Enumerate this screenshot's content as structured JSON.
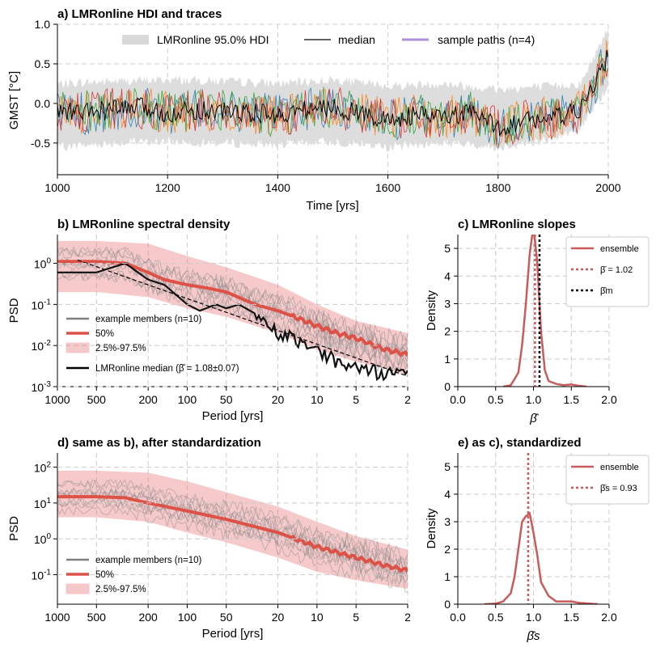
{
  "chart_data": [
    {
      "id": "a",
      "type": "line",
      "title": "a) LMRonline HDI and traces",
      "xlabel": "Time [yrs]",
      "ylabel": "GMST [°C]",
      "xlim": [
        1000,
        2000
      ],
      "ylim": [
        -0.9,
        1.0
      ],
      "xticks": [
        "1000",
        "1200",
        "1400",
        "1600",
        "1800",
        "2000"
      ],
      "yticks": [
        "-0.5",
        "0.0",
        "0.5",
        "1.0"
      ],
      "grid": true,
      "legend_position": "top-center",
      "legend": [
        "LMRonline 95.0% HDI",
        "median",
        "sample paths (n=4)"
      ],
      "colors": {
        "hdi": "#d9d9d9",
        "median": "#000000",
        "sample_legend": "#b28fd9",
        "traces": [
          "#1f77b4",
          "#ff7f0e",
          "#2ca02c",
          "#d62728"
        ]
      },
      "series": [
        {
          "name": "median",
          "x": [
            1000,
            1050,
            1100,
            1150,
            1200,
            1250,
            1300,
            1350,
            1400,
            1450,
            1500,
            1550,
            1600,
            1650,
            1700,
            1750,
            1800,
            1850,
            1900,
            1950,
            2000
          ],
          "values": [
            -0.1,
            -0.12,
            -0.08,
            -0.05,
            -0.12,
            -0.08,
            -0.1,
            -0.12,
            -0.15,
            -0.08,
            -0.05,
            -0.12,
            -0.22,
            -0.15,
            -0.18,
            -0.12,
            -0.3,
            -0.22,
            -0.18,
            -0.1,
            0.6
          ]
        },
        {
          "name": "95% HDI lower",
          "x": [
            1000,
            1100,
            1200,
            1300,
            1400,
            1500,
            1600,
            1700,
            1800,
            1900,
            1950,
            2000
          ],
          "values": [
            -0.55,
            -0.5,
            -0.48,
            -0.5,
            -0.52,
            -0.48,
            -0.55,
            -0.5,
            -0.55,
            -0.45,
            -0.3,
            0.2
          ]
        },
        {
          "name": "95% HDI upper",
          "x": [
            1000,
            1100,
            1200,
            1300,
            1400,
            1500,
            1600,
            1700,
            1800,
            1900,
            1950,
            2000
          ],
          "values": [
            0.25,
            0.28,
            0.3,
            0.28,
            0.25,
            0.3,
            0.22,
            0.25,
            0.18,
            0.22,
            0.25,
            0.95
          ]
        }
      ]
    },
    {
      "id": "b",
      "type": "line",
      "title": "b) LMRonline spectral density",
      "xlabel": "Period [yrs]",
      "ylabel": "PSD",
      "xscale": "log-reversed",
      "yscale": "log",
      "xlim": [
        1000,
        2
      ],
      "ylim": [
        0.001,
        5
      ],
      "xticks": [
        "1000",
        "500",
        "200",
        "100",
        "50",
        "20",
        "10",
        "5",
        "2"
      ],
      "yticks": [
        "10^-3",
        "10^-2",
        "10^-1",
        "10^0"
      ],
      "grid": true,
      "legend_position": "bottom-left",
      "legend": [
        "example members (n=10)",
        "50%",
        "2.5%-97.5%",
        "LMRonline median (β̂ = 1.08±0.07)"
      ],
      "series": [
        {
          "name": "50%",
          "x": [
            1000,
            500,
            300,
            200,
            150,
            100,
            70,
            50,
            30,
            20,
            15,
            10,
            7,
            5,
            3,
            2
          ],
          "values": [
            1.1,
            1.1,
            1.0,
            0.6,
            0.4,
            0.3,
            0.25,
            0.2,
            0.1,
            0.07,
            0.05,
            0.03,
            0.02,
            0.015,
            0.008,
            0.006
          ]
        },
        {
          "name": "2.5%",
          "x": [
            1000,
            500,
            200,
            100,
            50,
            20,
            10,
            5,
            2
          ],
          "values": [
            0.2,
            0.2,
            0.15,
            0.08,
            0.05,
            0.02,
            0.008,
            0.004,
            0.002
          ]
        },
        {
          "name": "97.5%",
          "x": [
            1000,
            500,
            200,
            100,
            50,
            20,
            10,
            5,
            2
          ],
          "values": [
            3.5,
            3.5,
            3.0,
            1.5,
            0.8,
            0.3,
            0.1,
            0.04,
            0.02
          ]
        },
        {
          "name": "LMRonline median",
          "x": [
            1000,
            500,
            300,
            200,
            150,
            100,
            80,
            60,
            50,
            40,
            30,
            20,
            15,
            10,
            7,
            5,
            3,
            2
          ],
          "values": [
            0.6,
            0.6,
            1.0,
            0.4,
            0.3,
            0.1,
            0.07,
            0.1,
            0.08,
            0.1,
            0.06,
            0.02,
            0.015,
            0.008,
            0.004,
            0.003,
            0.002,
            0.002
          ]
        },
        {
          "name": "fit",
          "x": [
            700,
            2
          ],
          "values": [
            1.2,
            0.0018
          ]
        }
      ]
    },
    {
      "id": "c",
      "type": "line",
      "title": "c) LMRonline slopes",
      "xlabel": "β̂",
      "ylabel": "Density",
      "xlim": [
        0,
        2
      ],
      "ylim": [
        0,
        5.5
      ],
      "xticks": [
        "0.0",
        "0.5",
        "1.0",
        "1.5",
        "2.0"
      ],
      "yticks": [
        "0",
        "1",
        "2",
        "3",
        "4",
        "5"
      ],
      "grid": true,
      "legend_position": "top-right",
      "legend": [
        "ensemble",
        "β̄ = 1.02",
        "β̂m"
      ],
      "series": [
        {
          "name": "ensemble",
          "x": [
            0.6,
            0.7,
            0.8,
            0.85,
            0.9,
            0.95,
            1.0,
            1.05,
            1.1,
            1.15,
            1.2,
            1.3,
            1.4,
            1.5,
            1.6,
            1.7
          ],
          "values": [
            0.0,
            0.05,
            0.5,
            1.5,
            3.0,
            4.8,
            5.8,
            4.5,
            2.0,
            0.6,
            0.2,
            0.1,
            0.05,
            0.08,
            0.03,
            0.0
          ]
        },
        {
          "name": "β̄",
          "x": [
            1.02
          ],
          "values": [
            1.02
          ]
        },
        {
          "name": "β̂m",
          "x": [
            1.08
          ],
          "values": [
            1.08
          ]
        }
      ]
    },
    {
      "id": "d",
      "type": "line",
      "title": "d) same as b), after standardization",
      "xlabel": "Period [yrs]",
      "ylabel": "PSD",
      "xscale": "log-reversed",
      "yscale": "log",
      "xlim": [
        1000,
        2
      ],
      "ylim": [
        0.015,
        250
      ],
      "xticks": [
        "1000",
        "500",
        "200",
        "100",
        "50",
        "20",
        "10",
        "5",
        "2"
      ],
      "yticks": [
        "10^-1",
        "10^0",
        "10^1",
        "10^2"
      ],
      "grid": true,
      "legend_position": "bottom-left",
      "legend": [
        "example members (n=10)",
        "50%",
        "2.5%-97.5%"
      ],
      "series": [
        {
          "name": "50%",
          "x": [
            1000,
            500,
            300,
            200,
            100,
            50,
            20,
            10,
            5,
            3,
            2
          ],
          "values": [
            15,
            15,
            14,
            10,
            6,
            3.5,
            1.5,
            0.6,
            0.3,
            0.18,
            0.13
          ]
        },
        {
          "name": "2.5%",
          "x": [
            1000,
            500,
            200,
            100,
            50,
            20,
            10,
            5,
            2
          ],
          "values": [
            4,
            4,
            3,
            1.5,
            0.8,
            0.3,
            0.12,
            0.07,
            0.04
          ]
        },
        {
          "name": "97.5%",
          "x": [
            1000,
            500,
            200,
            100,
            50,
            20,
            10,
            5,
            2
          ],
          "values": [
            80,
            80,
            70,
            40,
            20,
            8,
            3,
            1.2,
            0.5
          ]
        }
      ]
    },
    {
      "id": "e",
      "type": "line",
      "title": "e) as c), standardized",
      "xlabel": "β̂s",
      "ylabel": "Density",
      "xlim": [
        0,
        2
      ],
      "ylim": [
        0,
        5.5
      ],
      "xticks": [
        "0.0",
        "0.5",
        "1.0",
        "1.5",
        "2.0"
      ],
      "yticks": [
        "0",
        "1",
        "2",
        "3",
        "4",
        "5"
      ],
      "grid": true,
      "legend_position": "top-right",
      "legend": [
        "ensemble",
        "β̄s = 0.93"
      ],
      "series": [
        {
          "name": "ensemble",
          "x": [
            0.35,
            0.5,
            0.6,
            0.7,
            0.75,
            0.8,
            0.85,
            0.9,
            0.95,
            1.0,
            1.05,
            1.1,
            1.2,
            1.3,
            1.4,
            1.5,
            1.6,
            1.7,
            1.8,
            1.85
          ],
          "values": [
            0.0,
            0.02,
            0.1,
            0.4,
            1.0,
            2.0,
            3.0,
            3.2,
            3.3,
            2.6,
            1.8,
            0.8,
            0.3,
            0.1,
            0.1,
            0.1,
            0.05,
            0.03,
            0.01,
            0.0
          ]
        },
        {
          "name": "β̄s",
          "x": [
            0.93
          ],
          "values": [
            0.93
          ]
        }
      ]
    }
  ]
}
